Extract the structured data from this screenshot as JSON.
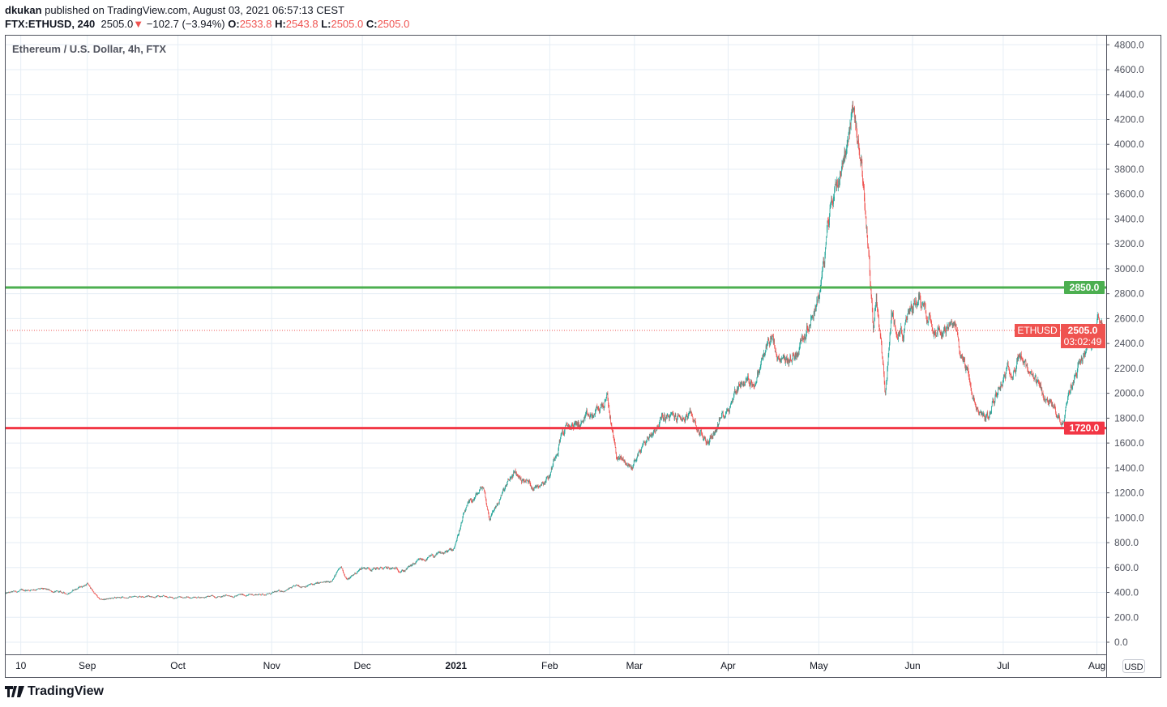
{
  "header": {
    "author": "dkukan",
    "published": "published on TradingView.com, August 03, 2021 06:57:13 CEST",
    "symbol": "FTX:ETHUSD, 240",
    "last": "2505.0",
    "change": "−102.7 (−3.94%)",
    "o_label": "O:",
    "o": "2533.8",
    "h_label": "H:",
    "h": "2543.8",
    "l_label": "L:",
    "l": "2505.0",
    "c_label": "C:",
    "c": "2505.0"
  },
  "logo": {
    "text": "TradingView"
  },
  "chart_data": {
    "type": "candlestick",
    "title": "Ethereum / U.S. Dollar, 4h, FTX",
    "currency": "USD",
    "ylim": [
      -60,
      4800
    ],
    "y_ticks": [
      "0.0",
      "200.0",
      "400.0",
      "600.0",
      "800.0",
      "1000.0",
      "1200.0",
      "1400.0",
      "1600.0",
      "1800.0",
      "2000.0",
      "2200.0",
      "2400.0",
      "2600.0",
      "2800.0",
      "3000.0",
      "3200.0",
      "3400.0",
      "3600.0",
      "3800.0",
      "4000.0",
      "4200.0",
      "4400.0",
      "4600.0",
      "4800.0"
    ],
    "x_range": [
      "2020-08-05",
      "2021-08-03"
    ],
    "x_ticks": [
      {
        "label": "10",
        "date": "2020-08-10"
      },
      {
        "label": "Sep",
        "date": "2020-09-01"
      },
      {
        "label": "Oct",
        "date": "2020-10-01"
      },
      {
        "label": "Nov",
        "date": "2020-11-01"
      },
      {
        "label": "Dec",
        "date": "2020-12-01"
      },
      {
        "label": "2021",
        "date": "2021-01-01"
      },
      {
        "label": "Feb",
        "date": "2021-02-01"
      },
      {
        "label": "Mar",
        "date": "2021-03-01"
      },
      {
        "label": "Apr",
        "date": "2021-04-01"
      },
      {
        "label": "May",
        "date": "2021-05-01"
      },
      {
        "label": "Jun",
        "date": "2021-06-01"
      },
      {
        "label": "Jul",
        "date": "2021-07-01"
      },
      {
        "label": "Aug",
        "date": "2021-08-01"
      }
    ],
    "grid": true,
    "colors": {
      "up": "#26a69a",
      "down": "#ef5350",
      "support": "#f23645",
      "resistance": "#4caf50"
    },
    "horizontal_lines": [
      {
        "label": "2850.0",
        "value": 2850,
        "color": "#4caf50"
      },
      {
        "label": "1720.0",
        "value": 1720,
        "color": "#f23645"
      }
    ],
    "last_price": {
      "symbol": "ETHUSD",
      "value": 2505.0,
      "label": "2505.0",
      "countdown": "03:02:49"
    },
    "approx_closes": [
      [
        "2020-08-05",
        390
      ],
      [
        "2020-08-15",
        430
      ],
      [
        "2020-08-25",
        390
      ],
      [
        "2020-09-01",
        470
      ],
      [
        "2020-09-05",
        340
      ],
      [
        "2020-09-20",
        375
      ],
      [
        "2020-10-01",
        355
      ],
      [
        "2020-10-15",
        370
      ],
      [
        "2020-11-01",
        390
      ],
      [
        "2020-11-10",
        450
      ],
      [
        "2020-11-20",
        480
      ],
      [
        "2020-11-24",
        600
      ],
      [
        "2020-11-26",
        500
      ],
      [
        "2020-12-01",
        600
      ],
      [
        "2020-12-15",
        580
      ],
      [
        "2020-12-20",
        650
      ],
      [
        "2020-12-31",
        740
      ],
      [
        "2021-01-04",
        1050
      ],
      [
        "2021-01-10",
        1250
      ],
      [
        "2021-01-12",
        1000
      ],
      [
        "2021-01-20",
        1350
      ],
      [
        "2021-01-27",
        1250
      ],
      [
        "2021-02-01",
        1350
      ],
      [
        "2021-02-05",
        1700
      ],
      [
        "2021-02-15",
        1800
      ],
      [
        "2021-02-20",
        1950
      ],
      [
        "2021-02-23",
        1500
      ],
      [
        "2021-02-28",
        1400
      ],
      [
        "2021-03-03",
        1550
      ],
      [
        "2021-03-10",
        1800
      ],
      [
        "2021-03-20",
        1800
      ],
      [
        "2021-03-25",
        1600
      ],
      [
        "2021-04-01",
        1900
      ],
      [
        "2021-04-05",
        2100
      ],
      [
        "2021-04-10",
        2100
      ],
      [
        "2021-04-15",
        2450
      ],
      [
        "2021-04-18",
        2200
      ],
      [
        "2021-04-23",
        2300
      ],
      [
        "2021-05-01",
        2800
      ],
      [
        "2021-05-03",
        3100
      ],
      [
        "2021-05-05",
        3500
      ],
      [
        "2021-05-10",
        4000
      ],
      [
        "2021-05-12",
        4300
      ],
      [
        "2021-05-15",
        3900
      ],
      [
        "2021-05-17",
        3300
      ],
      [
        "2021-05-19",
        2500
      ],
      [
        "2021-05-20",
        2800
      ],
      [
        "2021-05-23",
        2000
      ],
      [
        "2021-05-25",
        2600
      ],
      [
        "2021-05-29",
        2500
      ],
      [
        "2021-06-03",
        2800
      ],
      [
        "2021-06-07",
        2600
      ],
      [
        "2021-06-15",
        2500
      ],
      [
        "2021-06-20",
        2100
      ],
      [
        "2021-06-22",
        1850
      ],
      [
        "2021-06-26",
        1800
      ],
      [
        "2021-07-01",
        2150
      ],
      [
        "2021-07-07",
        2300
      ],
      [
        "2021-07-10",
        2100
      ],
      [
        "2021-07-15",
        1950
      ],
      [
        "2021-07-20",
        1800
      ],
      [
        "2021-07-21",
        1800
      ],
      [
        "2021-07-25",
        2200
      ],
      [
        "2021-07-30",
        2400
      ],
      [
        "2021-08-02",
        2600
      ],
      [
        "2021-08-03",
        2505
      ]
    ]
  }
}
